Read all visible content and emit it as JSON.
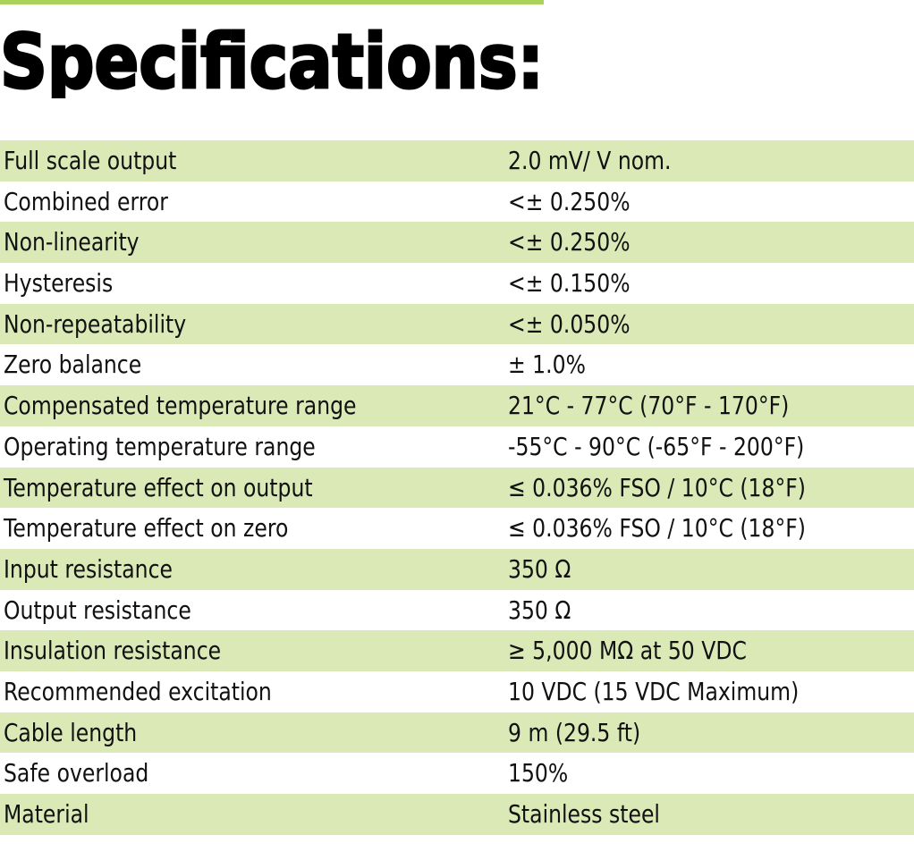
{
  "header": {
    "title": "Specifications:"
  },
  "table": {
    "rows": [
      [
        "Full scale output",
        "2.0 mV/ V nom."
      ],
      [
        "Combined error",
        "<± 0.250%"
      ],
      [
        "Non-linearity",
        "<± 0.250%"
      ],
      [
        "Hysteresis",
        "<± 0.150%"
      ],
      [
        "Non-repeatability",
        "<± 0.050%"
      ],
      [
        "Zero balance",
        "± 1.0%"
      ],
      [
        "Compensated temperature range",
        "21°C - 77°C (70°F - 170°F)"
      ],
      [
        "Operating temperature range",
        "-55°C - 90°C (-65°F - 200°F)"
      ],
      [
        "Temperature effect on output",
        "≤ 0.036% FSO / 10°C (18°F)"
      ],
      [
        "Temperature effect on zero",
        "≤ 0.036% FSO / 10°C (18°F)"
      ],
      [
        "Input resistance",
        "350 Ω"
      ],
      [
        "Output resistance",
        "350 Ω"
      ],
      [
        "Insulation resistance",
        "≥ 5,000 MΩ at 50 VDC"
      ],
      [
        "Recommended excitation",
        "10 VDC (15 VDC Maximum)"
      ],
      [
        "Cable length",
        "9 m (29.5 ft)"
      ],
      [
        "Safe overload",
        "150%"
      ],
      [
        "Material",
        "Stainless steel"
      ]
    ]
  }
}
